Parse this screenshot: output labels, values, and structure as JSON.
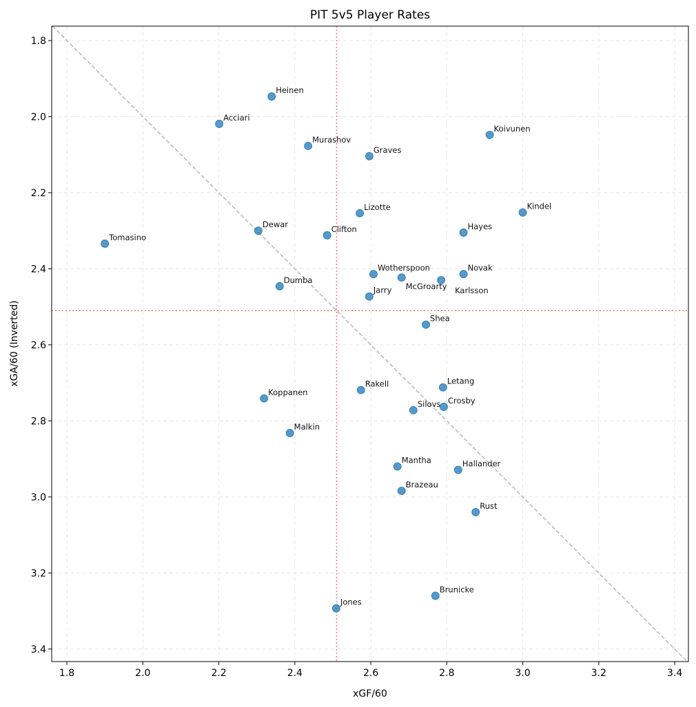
{
  "chart_data": {
    "type": "scatter",
    "title": "PIT 5v5 Player Rates",
    "xlabel": "xGF/60",
    "ylabel": "xGA/60 (Inverted)",
    "xlim": [
      1.76,
      3.436
    ],
    "ylim": [
      1.762,
      3.433
    ],
    "y_inverted": true,
    "grid": true,
    "xticks": [
      1.8,
      2.0,
      2.2,
      2.4,
      2.6,
      2.8,
      3.0,
      3.2,
      3.4
    ],
    "yticks": [
      1.8,
      2.0,
      2.2,
      2.4,
      2.6,
      2.8,
      3.0,
      3.2,
      3.4
    ],
    "xtick_labels": [
      "1.8",
      "2.0",
      "2.2",
      "2.4",
      "2.6",
      "2.8",
      "3.0",
      "3.2",
      "3.4"
    ],
    "ytick_labels": [
      "1.8",
      "2.0",
      "2.2",
      "2.4",
      "2.6",
      "2.8",
      "3.0",
      "3.2",
      "3.4"
    ],
    "reference_lines": {
      "vertical_x": 2.51,
      "horizontal_y": 2.51,
      "diagonal": "y = x",
      "ref_color": "#f08080",
      "diag_color": "#bbbbbb"
    },
    "point_color": "#1f77b4",
    "points": [
      {
        "name": "Heinen",
        "x": 2.339,
        "y": 1.947
      },
      {
        "name": "Acciari",
        "x": 2.201,
        "y": 2.019
      },
      {
        "name": "Murashov",
        "x": 2.435,
        "y": 2.077
      },
      {
        "name": "Graves",
        "x": 2.596,
        "y": 2.104
      },
      {
        "name": "Koivunen",
        "x": 2.913,
        "y": 2.048
      },
      {
        "name": "Kindel",
        "x": 3.0,
        "y": 2.252
      },
      {
        "name": "Lizotte",
        "x": 2.571,
        "y": 2.254
      },
      {
        "name": "Hayes",
        "x": 2.844,
        "y": 2.305
      },
      {
        "name": "Dewar",
        "x": 2.304,
        "y": 2.3
      },
      {
        "name": "Clifton",
        "x": 2.485,
        "y": 2.312
      },
      {
        "name": "Tomasino",
        "x": 1.9,
        "y": 2.334
      },
      {
        "name": "Wotherspoon",
        "x": 2.607,
        "y": 2.414
      },
      {
        "name": "McGroarty",
        "x": 2.681,
        "y": 2.423
      },
      {
        "name": "Karlsson",
        "x": 2.785,
        "y": 2.43
      },
      {
        "name": "Novak",
        "x": 2.844,
        "y": 2.414
      },
      {
        "name": "Dumba",
        "x": 2.36,
        "y": 2.446
      },
      {
        "name": "Jarry",
        "x": 2.596,
        "y": 2.473
      },
      {
        "name": "Shea",
        "x": 2.745,
        "y": 2.547
      },
      {
        "name": "Letang",
        "x": 2.79,
        "y": 2.712
      },
      {
        "name": "Rakell",
        "x": 2.574,
        "y": 2.719
      },
      {
        "name": "Koppanen",
        "x": 2.319,
        "y": 2.741
      },
      {
        "name": "Crosby",
        "x": 2.792,
        "y": 2.763
      },
      {
        "name": "Silovs",
        "x": 2.712,
        "y": 2.772
      },
      {
        "name": "Malkin",
        "x": 2.387,
        "y": 2.832
      },
      {
        "name": "Mantha",
        "x": 2.67,
        "y": 2.92
      },
      {
        "name": "Hallander",
        "x": 2.83,
        "y": 2.929
      },
      {
        "name": "Brazeau",
        "x": 2.681,
        "y": 2.984
      },
      {
        "name": "Rust",
        "x": 2.876,
        "y": 3.04
      },
      {
        "name": "Brunicke",
        "x": 2.77,
        "y": 3.26
      },
      {
        "name": "Jones",
        "x": 2.509,
        "y": 3.293
      }
    ]
  }
}
